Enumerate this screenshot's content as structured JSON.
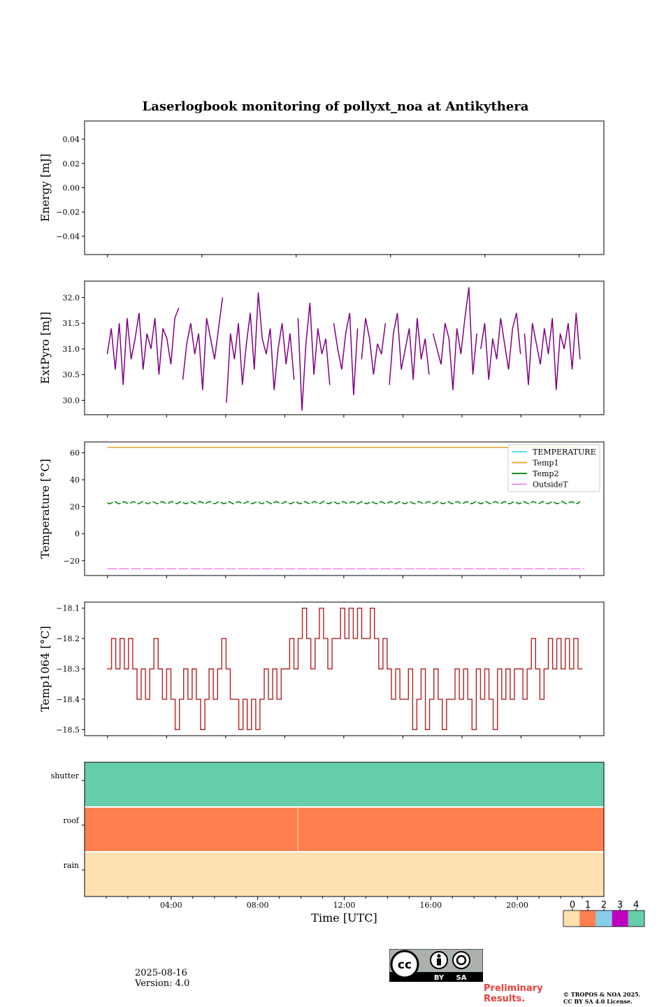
{
  "title": "Laserlogbook monitoring of pollyxt_noa at Antikythera",
  "colors": {
    "extpyro": "#800080",
    "temperature": "#40e0e0",
    "temp1": "#f0a020",
    "temp2": "#008000",
    "outsideT": "#ee82ee",
    "temp1064": "#b22222",
    "status": [
      "#ffe0b0",
      "#ff7f50",
      "#87ceeb",
      "#c000c0",
      "#66cdaa"
    ]
  },
  "chart_data": [
    {
      "type": "line",
      "name": "energy",
      "ylabel": "Energy [mJ]",
      "ylim": [
        -0.055,
        0.055
      ],
      "yticks": [
        0.04,
        0.02,
        0.0,
        -0.02,
        -0.04
      ],
      "ytick_labels": [
        "0.04",
        "0.02",
        "0.00",
        "−0.02",
        "−0.04"
      ],
      "series": []
    },
    {
      "type": "line",
      "name": "extpyro",
      "ylabel": "ExtPyro [mJ]",
      "ylim": [
        29.72,
        32.32
      ],
      "yticks": [
        32.0,
        31.5,
        31.0,
        30.5,
        30.0
      ],
      "ytick_labels": [
        "32.0",
        "31.5",
        "31.0",
        "30.5",
        "30.0"
      ],
      "series": [
        {
          "color": "#800080",
          "x_range_hours": [
            1.05,
            22.9
          ],
          "values": [
            30.9,
            31.4,
            30.6,
            31.5,
            30.3,
            31.6,
            30.8,
            31.2,
            31.7,
            30.6,
            31.3,
            31.0,
            31.6,
            30.5,
            31.4,
            31.2,
            30.7,
            31.6,
            31.8,
            30.4,
            31.1,
            31.5,
            30.9,
            31.3,
            30.2,
            31.6,
            31.2,
            30.8,
            31.4,
            32.0,
            29.95,
            31.3,
            30.8,
            31.5,
            30.3,
            31.1,
            31.7,
            30.6,
            32.1,
            31.2,
            30.9,
            31.4,
            30.2,
            31.0,
            31.5,
            30.7,
            31.3,
            30.4,
            31.6,
            29.8,
            31.1,
            31.9,
            30.5,
            31.4,
            30.9,
            31.2,
            30.3,
            31.5,
            31.0,
            30.6,
            31.3,
            31.7,
            30.1,
            31.4,
            30.8,
            31.6,
            31.2,
            30.5,
            31.1,
            30.9,
            31.5,
            30.3,
            31.3,
            31.7,
            30.6,
            31.0,
            31.4,
            30.4,
            31.6,
            30.8,
            31.2,
            30.5,
            31.3,
            31.0,
            30.7,
            31.5,
            31.2,
            30.2,
            31.4,
            30.9,
            31.6,
            32.2,
            30.5,
            31.3,
            31.0,
            31.5,
            30.4,
            31.2,
            30.8,
            31.6,
            31.1,
            30.6,
            31.4,
            31.7,
            30.9,
            31.3,
            30.3,
            31.5,
            31.1,
            30.7,
            31.4,
            30.9,
            31.6,
            30.2,
            31.3,
            31.0,
            31.5,
            30.6,
            31.7,
            30.8
          ]
        }
      ]
    },
    {
      "type": "line",
      "name": "temperature",
      "ylabel": "Temperature [°C]",
      "ylim": [
        -31,
        68
      ],
      "yticks": [
        60,
        40,
        20,
        0,
        -20
      ],
      "ytick_labels": [
        "60",
        "40",
        "20",
        "0",
        "−20"
      ],
      "legend": "top-right",
      "series": [
        {
          "name": "TEMPERATURE",
          "color": "#40e0e0",
          "level": null
        },
        {
          "name": "Temp1",
          "color": "#f0a020",
          "level": 64,
          "x_range_hours": [
            1.05,
            23.1
          ]
        },
        {
          "name": "Temp2",
          "color": "#008000",
          "level": 23,
          "x_range_hours": [
            1.05,
            22.9
          ]
        },
        {
          "name": "OutsideT",
          "color": "#ee82ee",
          "level": -26,
          "x_range_hours": [
            1.05,
            23.1
          ]
        }
      ]
    },
    {
      "type": "line",
      "name": "temp1064",
      "ylabel": "Temp1064 [°C]",
      "ylim": [
        -18.52,
        -18.08
      ],
      "yticks": [
        -18.1,
        -18.2,
        -18.3,
        -18.4,
        -18.5
      ],
      "ytick_labels": [
        "−18.1",
        "−18.2",
        "−18.3",
        "−18.4",
        "−18.5"
      ],
      "series": [
        {
          "color": "#b22222",
          "x_range_hours": [
            1.05,
            23.0
          ],
          "values": [
            -18.3,
            -18.2,
            -18.3,
            -18.2,
            -18.3,
            -18.2,
            -18.3,
            -18.4,
            -18.3,
            -18.4,
            -18.3,
            -18.2,
            -18.3,
            -18.4,
            -18.3,
            -18.4,
            -18.5,
            -18.4,
            -18.3,
            -18.4,
            -18.3,
            -18.4,
            -18.5,
            -18.4,
            -18.3,
            -18.4,
            -18.3,
            -18.2,
            -18.3,
            -18.4,
            -18.4,
            -18.5,
            -18.4,
            -18.5,
            -18.4,
            -18.5,
            -18.4,
            -18.3,
            -18.4,
            -18.3,
            -18.4,
            -18.3,
            -18.3,
            -18.2,
            -18.3,
            -18.2,
            -18.1,
            -18.2,
            -18.3,
            -18.2,
            -18.1,
            -18.2,
            -18.3,
            -18.2,
            -18.2,
            -18.1,
            -18.2,
            -18.1,
            -18.2,
            -18.1,
            -18.2,
            -18.2,
            -18.1,
            -18.2,
            -18.3,
            -18.2,
            -18.3,
            -18.4,
            -18.3,
            -18.4,
            -18.4,
            -18.3,
            -18.5,
            -18.4,
            -18.3,
            -18.5,
            -18.4,
            -18.3,
            -18.4,
            -18.5,
            -18.4,
            -18.4,
            -18.3,
            -18.4,
            -18.3,
            -18.4,
            -18.5,
            -18.3,
            -18.4,
            -18.3,
            -18.4,
            -18.5,
            -18.3,
            -18.4,
            -18.3,
            -18.4,
            -18.3,
            -18.3,
            -18.4,
            -18.3,
            -18.2,
            -18.3,
            -18.4,
            -18.3,
            -18.2,
            -18.3,
            -18.2,
            -18.3,
            -18.2,
            -18.3,
            -18.2,
            -18.3
          ]
        }
      ]
    },
    {
      "type": "heatmap",
      "name": "status",
      "rows": [
        "shutter",
        "roof",
        "rain"
      ],
      "segments": [
        {
          "row": "shutter",
          "x_range_hours": [
            0,
            24
          ],
          "value": 4
        },
        {
          "row": "roof",
          "x_range_hours": [
            0,
            24
          ],
          "value": 1
        },
        {
          "row": "rain",
          "x_range_hours": [
            0,
            24
          ],
          "value": 0
        }
      ],
      "xlabel": "Time [UTC]",
      "xlim_hours": [
        0,
        24
      ],
      "xticks_hours": [
        4,
        8,
        12,
        16,
        20
      ],
      "xtick_labels": [
        "04:00",
        "08:00",
        "12:00",
        "16:00",
        "20:00"
      ],
      "colorbar": {
        "ticks": [
          "0",
          "1",
          "2",
          "3",
          "4"
        ]
      }
    }
  ],
  "footer": {
    "date": "2025-08-16",
    "version": "Version: 4.0",
    "preliminary_line1": "Preliminary",
    "preliminary_line2": "Results.",
    "copyright_line1": "© TROPOS & NOA 2025.",
    "copyright_line2": "CC BY SA 4.0 License.",
    "cc_by": "BY",
    "cc_sa": "SA"
  }
}
